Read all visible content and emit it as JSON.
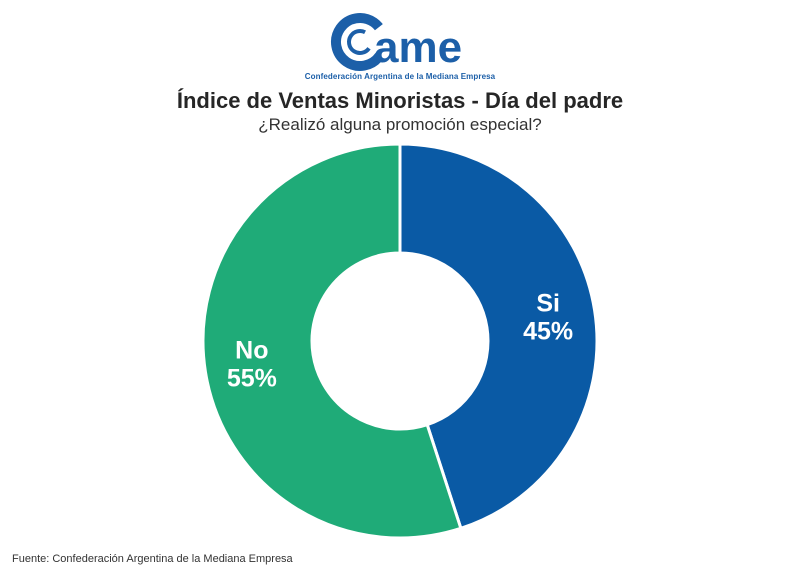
{
  "brand": {
    "logo_text": "ame",
    "tagline": "Confederación Argentina de la Mediana Empresa",
    "colors": {
      "primary": "#1c5fa8"
    }
  },
  "chart_data": {
    "type": "pie",
    "variant": "donut",
    "title": "Índice de Ventas Minoristas - Día del padre",
    "subtitle": "¿Realizó alguna promoción especial?",
    "slices": [
      {
        "label": "Si",
        "value": 45,
        "value_label": "45%",
        "color": "#0a5aa5"
      },
      {
        "label": "No",
        "value": 55,
        "value_label": "55%",
        "color": "#1fab78"
      }
    ]
  },
  "footer": {
    "source": "Fuente: Confederación Argentina de la Mediana Empresa"
  }
}
